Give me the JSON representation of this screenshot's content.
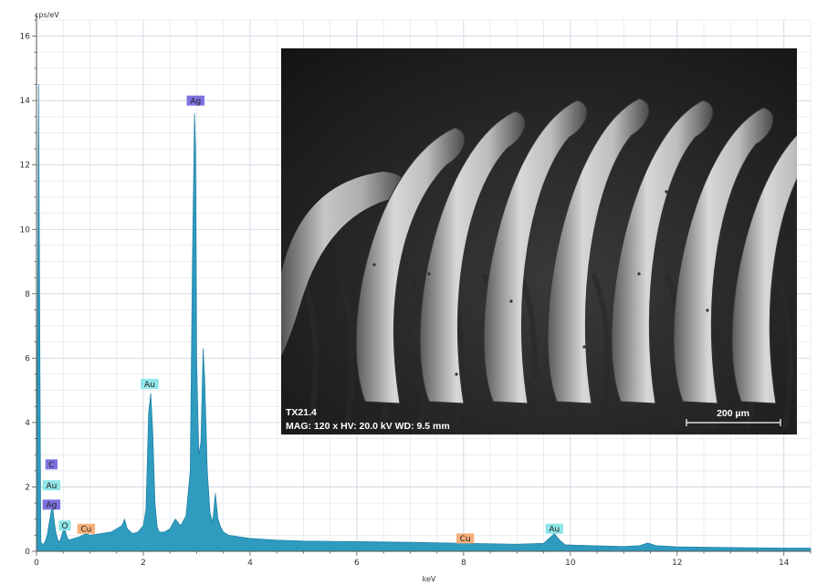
{
  "chart_data": {
    "type": "area",
    "xlabel": "keV",
    "ylabel": "cps/eV",
    "xlim": [
      0,
      14.5
    ],
    "ylim": [
      0,
      16.5
    ],
    "xticks": [
      0,
      2,
      4,
      6,
      8,
      10,
      12,
      14
    ],
    "yticks": [
      0,
      2,
      4,
      6,
      8,
      10,
      12,
      14,
      16
    ],
    "grid": true,
    "fill_color": "#2e9bbf",
    "series": [
      {
        "x": [
          0.0,
          0.04,
          0.08,
          0.12,
          0.16,
          0.2,
          0.24,
          0.28,
          0.3,
          0.32,
          0.36,
          0.4,
          0.44,
          0.48,
          0.52,
          0.56,
          0.6,
          0.7,
          0.8,
          0.93,
          1.0,
          1.2,
          1.4,
          1.6,
          1.65,
          1.7,
          1.8,
          1.9,
          2.0,
          2.05,
          2.1,
          2.14,
          2.18,
          2.22,
          2.26,
          2.3,
          2.4,
          2.5,
          2.6,
          2.65,
          2.7,
          2.8,
          2.88,
          2.92,
          2.96,
          2.98,
          3.0,
          3.04,
          3.08,
          3.12,
          3.15,
          3.2,
          3.25,
          3.3,
          3.35,
          3.4,
          3.45,
          3.5,
          3.6,
          3.8,
          4.0,
          4.5,
          5.0,
          6.0,
          7.0,
          8.0,
          9.0,
          9.5,
          9.6,
          9.7,
          9.8,
          9.9,
          10.5,
          11.0,
          11.3,
          11.45,
          11.6,
          12.0,
          13.0,
          14.0,
          14.5
        ],
        "y": [
          0.2,
          14.5,
          0.3,
          0.2,
          0.3,
          0.5,
          0.9,
          1.3,
          1.6,
          1.1,
          0.6,
          0.35,
          0.3,
          0.55,
          0.75,
          0.5,
          0.35,
          0.4,
          0.45,
          0.55,
          0.5,
          0.55,
          0.6,
          0.8,
          1.0,
          0.7,
          0.55,
          0.6,
          0.8,
          1.3,
          4.3,
          4.9,
          3.6,
          1.5,
          0.75,
          0.6,
          0.6,
          0.7,
          1.0,
          0.9,
          0.8,
          1.1,
          2.5,
          9.0,
          13.6,
          12.5,
          6.0,
          3.0,
          3.4,
          6.3,
          5.4,
          2.5,
          1.2,
          0.9,
          1.8,
          1.0,
          0.75,
          0.6,
          0.5,
          0.45,
          0.4,
          0.35,
          0.32,
          0.3,
          0.28,
          0.25,
          0.22,
          0.25,
          0.4,
          0.55,
          0.35,
          0.2,
          0.17,
          0.15,
          0.18,
          0.26,
          0.18,
          0.14,
          0.12,
          0.1,
          0.1
        ]
      }
    ],
    "annotations": [
      {
        "label": "Ag",
        "x": 2.98,
        "y": 14.0,
        "kind": "Ag"
      },
      {
        "label": "Au",
        "x": 2.12,
        "y": 5.2,
        "kind": "Au"
      },
      {
        "label": "C",
        "x": 0.28,
        "y": 2.7,
        "kind": "C"
      },
      {
        "label": "Au",
        "x": 0.28,
        "y": 2.05,
        "kind": "Au"
      },
      {
        "label": "Ag",
        "x": 0.28,
        "y": 1.45,
        "kind": "Ag"
      },
      {
        "label": "O",
        "x": 0.53,
        "y": 0.8,
        "kind": "Au"
      },
      {
        "label": "Cu",
        "x": 0.93,
        "y": 0.7,
        "kind": "Cu"
      },
      {
        "label": "Cu",
        "x": 8.03,
        "y": 0.4,
        "kind": "Cu"
      },
      {
        "label": "Au",
        "x": 9.7,
        "y": 0.7,
        "kind": "Au"
      }
    ],
    "tag_colors": {
      "Ag": "#7d72e0",
      "Au": "#8fe6e8",
      "C": "#7d72e0",
      "Cu": "#f5b07a"
    }
  },
  "inset": {
    "sample_label": "TX21.4",
    "acquisition_info": "MAG: 120 x  HV: 20.0 kV  WD: 9.5 mm",
    "scale_bar_label": "200 µm"
  }
}
